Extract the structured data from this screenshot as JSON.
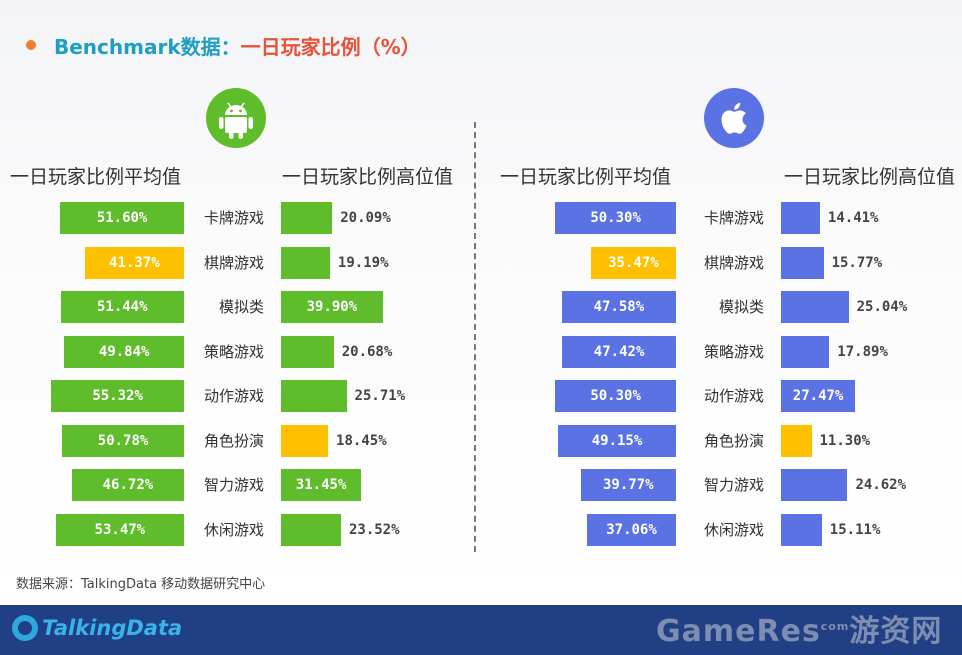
{
  "title": {
    "prefix": "Benchmark数据：",
    "highlight": "一日玩家比例（%）"
  },
  "colors": {
    "android": "#5fbd2b",
    "ios": "#5b72e4",
    "highlight": "#ffc000"
  },
  "android": {
    "avg_header": "一日玩家比例平均值",
    "median_header": "一日玩家比例高位值",
    "icon": "android-robot-icon"
  },
  "ios": {
    "avg_header": "一日玩家比例平均值",
    "median_header": "一日玩家比例高位值",
    "icon": "apple-logo-icon"
  },
  "source": "数据来源：TalkingData 移动数据研究中心",
  "footer": {
    "brand": "TalkingData",
    "watermark": "GameRes",
    "watermark_com": "com",
    "watermark_cn": "游资网"
  },
  "chart_data": [
    {
      "type": "bar",
      "platform": "android",
      "series_label": "一日玩家比例平均值",
      "categories": [
        "卡牌游戏",
        "棋牌游戏",
        "模拟类",
        "策略游戏",
        "动作游戏",
        "角色扮演",
        "智力游戏",
        "休闲游戏"
      ],
      "values": [
        51.6,
        41.37,
        51.44,
        49.84,
        55.32,
        50.78,
        46.72,
        53.47
      ],
      "labels": [
        "51.60%",
        "41.37%",
        "51.44%",
        "49.84%",
        "55.32%",
        "50.78%",
        "46.72%",
        "53.47%"
      ],
      "highlight_index": [
        1
      ]
    },
    {
      "type": "bar",
      "platform": "android",
      "series_label": "一日玩家比例高位值",
      "categories": [
        "卡牌游戏",
        "棋牌游戏",
        "模拟类",
        "策略游戏",
        "动作游戏",
        "角色扮演",
        "智力游戏",
        "休闲游戏"
      ],
      "values": [
        20.09,
        19.19,
        39.9,
        20.68,
        25.71,
        18.45,
        31.45,
        23.52
      ],
      "labels": [
        "20.09%",
        "19.19%",
        "39.90%",
        "20.68%",
        "25.71%",
        "18.45%",
        "31.45%",
        "23.52%"
      ],
      "highlight_index": [
        5
      ]
    },
    {
      "type": "bar",
      "platform": "ios",
      "series_label": "一日玩家比例平均值",
      "categories": [
        "卡牌游戏",
        "棋牌游戏",
        "模拟类",
        "策略游戏",
        "动作游戏",
        "角色扮演",
        "智力游戏",
        "休闲游戏"
      ],
      "values": [
        50.3,
        35.47,
        47.58,
        47.42,
        50.3,
        49.15,
        39.77,
        37.06
      ],
      "labels": [
        "50.30%",
        "35.47%",
        "47.58%",
        "47.42%",
        "50.30%",
        "49.15%",
        "39.77%",
        "37.06%"
      ],
      "highlight_index": [
        1
      ]
    },
    {
      "type": "bar",
      "platform": "ios",
      "series_label": "一日玩家比例高位值",
      "categories": [
        "卡牌游戏",
        "棋牌游戏",
        "模拟类",
        "策略游戏",
        "动作游戏",
        "角色扮演",
        "智力游戏",
        "休闲游戏"
      ],
      "values": [
        14.41,
        15.77,
        25.04,
        17.89,
        27.47,
        11.3,
        24.62,
        15.11
      ],
      "labels": [
        "14.41%",
        "15.77%",
        "25.04%",
        "17.89%",
        "27.47%",
        "11.30%",
        "24.62%",
        "15.11%"
      ],
      "highlight_index": [
        5
      ]
    }
  ]
}
